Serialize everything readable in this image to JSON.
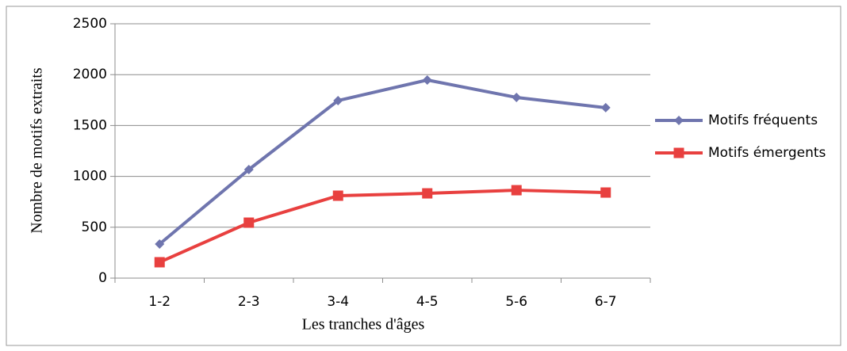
{
  "chart_data": {
    "type": "line",
    "x_label": "Les tranches d'âges",
    "y_label": "Nombre de motifs extraits",
    "categories": [
      "1-2",
      "2-3",
      "3-4",
      "4-5",
      "5-6",
      "6-7"
    ],
    "series": [
      {
        "name": "Motifs fréquents",
        "color": "#6f75ae",
        "marker": "diamond",
        "values": [
          335,
          1067,
          1745,
          1947,
          1776,
          1675
        ]
      },
      {
        "name": "Motifs émergents",
        "color": "#e8403f",
        "marker": "square",
        "values": [
          156,
          545,
          810,
          833,
          864,
          841
        ]
      }
    ],
    "ylim": [
      0,
      2500
    ],
    "yticks": [
      0,
      500,
      1000,
      1500,
      2000,
      2500
    ],
    "grid": true,
    "legend": "right"
  }
}
